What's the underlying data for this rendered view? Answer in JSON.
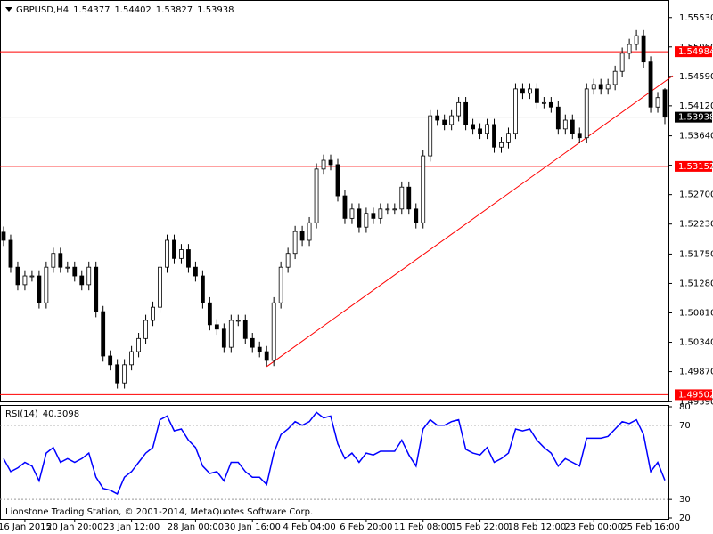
{
  "chart_data": [
    {
      "type": "candlestick",
      "title": "GBPUSD,H4",
      "categories": [
        null,
        null,
        null,
        "16 Jan 2015",
        null,
        null,
        null,
        null,
        null,
        null,
        "20 Jan 20:00",
        null,
        null,
        null,
        null,
        null,
        null,
        null,
        "23 Jan 12:00",
        null,
        null,
        null,
        null,
        null,
        null,
        null,
        null,
        "28 Jan 00:00",
        null,
        null,
        null,
        null,
        null,
        null,
        null,
        "30 Jan 16:00",
        null,
        null,
        null,
        null,
        null,
        null,
        null,
        "4 Feb 04:00",
        null,
        null,
        null,
        null,
        null,
        null,
        null,
        "6 Feb 20:00",
        null,
        null,
        null,
        null,
        null,
        null,
        null,
        "11 Feb 08:00",
        null,
        null,
        null,
        null,
        null,
        null,
        null,
        "15 Feb 22:00",
        null,
        null,
        null,
        null,
        null,
        null,
        null,
        "18 Feb 12:00",
        null,
        null,
        null,
        null,
        null,
        null,
        null,
        "23 Feb 00:00",
        null,
        null,
        null,
        null,
        null,
        null,
        null,
        "25 Feb 16:00",
        null,
        null
      ],
      "open": [
        1.521,
        1.5197,
        1.5154,
        1.5126,
        1.514,
        1.514,
        1.5097,
        1.5154,
        1.5176,
        1.5154,
        1.5154,
        1.514,
        1.5126,
        1.5154,
        1.5083,
        1.5012,
        1.4998,
        1.4969,
        1.4998,
        1.5019,
        1.504,
        1.5069,
        1.509,
        1.5154,
        1.5197,
        1.5168,
        1.5182,
        1.5154,
        1.514,
        1.5097,
        1.5062,
        1.5055,
        1.5026,
        1.5069,
        1.5069,
        1.504,
        1.5026,
        1.5019,
        1.5005,
        1.5097,
        1.5154,
        1.5176,
        1.5211,
        1.5197,
        1.5225,
        1.5311,
        1.5325,
        1.5318,
        1.5268,
        1.5232,
        1.5247,
        1.5218,
        1.524,
        1.5232,
        1.5247,
        1.5247,
        1.5247,
        1.5282,
        1.5247,
        1.5225,
        1.5332,
        1.5396,
        1.5389,
        1.5382,
        1.5396,
        1.5417,
        1.5382,
        1.5375,
        1.5368,
        1.5382,
        1.5346,
        1.5353,
        1.5368,
        1.5439,
        1.5432,
        1.5439,
        1.5417,
        1.5417,
        1.541,
        1.5375,
        1.5389,
        1.5368,
        1.5361,
        1.5439,
        1.5446,
        1.5439,
        1.5446,
        1.5467,
        1.5496,
        1.551,
        1.5524,
        1.5482,
        1.541,
        1.54377
      ],
      "high": [
        1.5219,
        1.5206,
        1.5163,
        1.5149,
        1.5149,
        1.5149,
        1.5163,
        1.5185,
        1.5185,
        1.5163,
        1.5163,
        1.5149,
        1.5163,
        1.5163,
        1.5092,
        1.5021,
        1.5007,
        1.5007,
        1.5028,
        1.5049,
        1.5078,
        1.5099,
        1.5163,
        1.5206,
        1.5206,
        1.5191,
        1.5191,
        1.5163,
        1.5149,
        1.5106,
        1.5071,
        1.5064,
        1.5078,
        1.5078,
        1.5078,
        1.5049,
        1.5035,
        1.5028,
        1.5106,
        1.5163,
        1.5185,
        1.522,
        1.522,
        1.5234,
        1.532,
        1.5334,
        1.5334,
        1.5327,
        1.5277,
        1.5256,
        1.5256,
        1.5249,
        1.5249,
        1.5256,
        1.5256,
        1.5256,
        1.5291,
        1.5291,
        1.5256,
        1.5341,
        1.5405,
        1.5405,
        1.5398,
        1.5405,
        1.5426,
        1.5426,
        1.5391,
        1.5384,
        1.5391,
        1.5391,
        1.5362,
        1.5377,
        1.5448,
        1.5448,
        1.5448,
        1.5448,
        1.5426,
        1.5426,
        1.5419,
        1.5398,
        1.5398,
        1.5377,
        1.5448,
        1.5455,
        1.5455,
        1.5455,
        1.5476,
        1.5505,
        1.5519,
        1.5533,
        1.5533,
        1.5491,
        1.5434,
        1.54402
      ],
      "low": [
        1.5188,
        1.5145,
        1.5117,
        1.5117,
        1.5131,
        1.5088,
        1.5088,
        1.5145,
        1.5145,
        1.5145,
        1.5131,
        1.5117,
        1.5117,
        1.5074,
        1.5003,
        1.4989,
        1.496,
        1.496,
        1.4989,
        1.501,
        1.5031,
        1.506,
        1.5081,
        1.5145,
        1.5159,
        1.5159,
        1.5145,
        1.5131,
        1.5088,
        1.5053,
        1.5046,
        1.5017,
        1.5017,
        1.506,
        1.5031,
        1.5017,
        1.501,
        1.4996,
        1.4996,
        1.5088,
        1.5145,
        1.5167,
        1.5188,
        1.5188,
        1.5216,
        1.5302,
        1.5309,
        1.5259,
        1.5223,
        1.5223,
        1.5209,
        1.5209,
        1.5223,
        1.5223,
        1.5238,
        1.5238,
        1.5238,
        1.5238,
        1.5216,
        1.5216,
        1.5323,
        1.538,
        1.5373,
        1.5373,
        1.5387,
        1.5373,
        1.5366,
        1.5359,
        1.5359,
        1.5337,
        1.5337,
        1.5344,
        1.5359,
        1.5423,
        1.5423,
        1.5408,
        1.5408,
        1.5401,
        1.5366,
        1.5366,
        1.5359,
        1.5352,
        1.5352,
        1.543,
        1.543,
        1.543,
        1.5437,
        1.5458,
        1.5487,
        1.5501,
        1.5473,
        1.5401,
        1.5401,
        1.53827
      ],
      "close": [
        1.5197,
        1.5154,
        1.5126,
        1.514,
        1.514,
        1.5097,
        1.5154,
        1.5176,
        1.5154,
        1.5154,
        1.514,
        1.5126,
        1.5154,
        1.5083,
        1.5012,
        1.4998,
        1.4969,
        1.4998,
        1.5019,
        1.504,
        1.5069,
        1.509,
        1.5154,
        1.5197,
        1.5168,
        1.5182,
        1.5154,
        1.514,
        1.5097,
        1.5062,
        1.5055,
        1.5026,
        1.5069,
        1.5069,
        1.504,
        1.5026,
        1.5019,
        1.5005,
        1.5097,
        1.5154,
        1.5176,
        1.5211,
        1.5197,
        1.5225,
        1.5311,
        1.5325,
        1.5318,
        1.5268,
        1.5232,
        1.5247,
        1.5218,
        1.524,
        1.5232,
        1.5247,
        1.5247,
        1.5247,
        1.5282,
        1.5247,
        1.5225,
        1.5332,
        1.5396,
        1.5389,
        1.5382,
        1.5396,
        1.5417,
        1.5382,
        1.5375,
        1.5368,
        1.5382,
        1.5346,
        1.5353,
        1.5368,
        1.5439,
        1.5432,
        1.5439,
        1.5417,
        1.5417,
        1.541,
        1.5375,
        1.5389,
        1.5368,
        1.5361,
        1.5439,
        1.5446,
        1.5439,
        1.5446,
        1.5467,
        1.5496,
        1.551,
        1.5524,
        1.5482,
        1.541,
        1.5425,
        1.53938
      ],
      "up_color": "#ffffff",
      "down_color": "#000000",
      "line_color": "#000000",
      "ylim": [
        1.4938,
        1.5574
      ],
      "yticks": [
        {
          "value": 1.5553,
          "label": "1.55530"
        },
        {
          "value": 1.5506,
          "label": "1.55060"
        },
        {
          "value": 1.5459,
          "label": "1.54590"
        },
        {
          "value": 1.5412,
          "label": "1.54120"
        },
        {
          "value": 1.5364,
          "label": "1.53640"
        },
        {
          "value": 1.5317,
          "label": "1.53170"
        },
        {
          "value": 1.527,
          "label": "1.52700"
        },
        {
          "value": 1.5223,
          "label": "1.52230"
        },
        {
          "value": 1.5175,
          "label": "1.51750"
        },
        {
          "value": 1.5128,
          "label": "1.51280"
        },
        {
          "value": 1.5081,
          "label": "1.50810"
        },
        {
          "value": 1.5034,
          "label": "1.50340"
        },
        {
          "value": 1.4987,
          "label": "1.49870"
        },
        {
          "value": 1.4939,
          "label": "1.49390"
        }
      ],
      "hlines": [
        1.54984,
        1.53152,
        1.49502
      ],
      "hline_color": "#ff0000",
      "price_line_color": "#c0c0c0",
      "trendline": {
        "start": [
          37,
          1.4995
        ],
        "end": [
          94.125,
          1.546
        ],
        "color": "#ff0000"
      }
    },
    {
      "type": "line",
      "series": [
        {
          "name": "RSI(14)",
          "color": "#0000ff",
          "values": [
            52,
            45,
            47,
            50,
            48,
            40,
            55,
            58,
            50,
            52,
            50,
            52,
            55,
            42,
            36,
            35,
            33,
            42,
            45,
            50,
            55,
            58,
            73,
            75,
            67,
            68,
            62,
            58,
            48,
            44,
            45,
            40,
            50,
            50,
            45,
            42,
            42,
            38,
            55,
            65,
            68,
            72,
            70,
            72,
            77,
            74,
            75,
            60,
            52,
            55,
            50,
            55,
            54,
            56,
            56,
            56,
            62,
            54,
            48,
            68,
            73,
            70,
            70,
            72,
            73,
            57,
            55,
            54,
            58,
            50,
            52,
            55,
            68,
            67,
            68,
            62,
            58,
            55,
            48,
            52,
            50,
            48,
            63,
            63,
            63,
            64,
            68,
            72,
            71,
            73,
            65,
            45,
            50,
            40.3098
          ]
        }
      ],
      "ylim": [
        20,
        80
      ],
      "yticks": [
        80,
        70,
        30,
        20
      ],
      "levels": [
        70,
        30
      ],
      "level_color": "#999999",
      "annotation": "Lionstone Trading Station, © 2001-2014, MetaQuotes Software Corp."
    }
  ]
}
